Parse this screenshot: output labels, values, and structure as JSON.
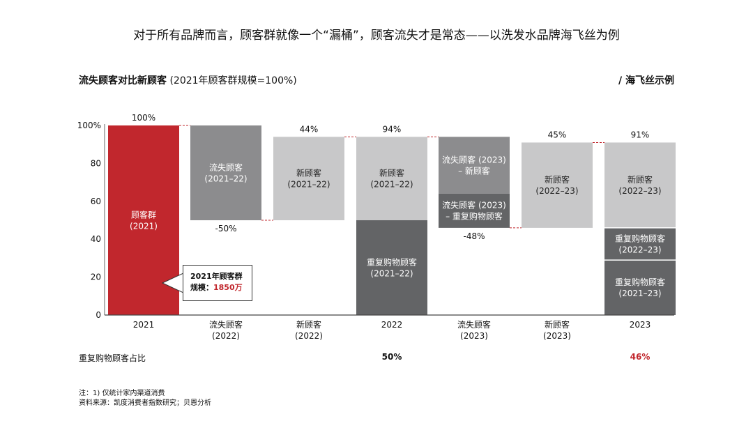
{
  "headline": "对于所有品牌而言，顾客群就像一个“漏桶”，顾客流失才是常态——以洗发水品牌海飞丝为例",
  "subtitle": {
    "bold": "流失顾客对比新顾客",
    "normal": "(2021年顾客群规模=100%)"
  },
  "example_label": "/ 海飞丝示例",
  "callout": {
    "line1": "2021年顾客群",
    "line2_prefix": "规模：",
    "line2_value": "1850万"
  },
  "ratio_row": {
    "label": "重复购物顾客占比",
    "values": [
      {
        "col": 3,
        "text": "50%",
        "color": "#111111"
      },
      {
        "col": 6,
        "text": "46%",
        "color": "#c1272d"
      }
    ]
  },
  "notes": [
    "注：1) 仅统计家内渠道消费",
    "资料来源：凯度消费者指数研究；贝恩分析"
  ],
  "colors": {
    "red": "#c1272d",
    "mid_gray": "#8c8c8e",
    "light_gray": "#c8c8c9",
    "dark_gray": "#636466"
  },
  "chart_data": {
    "type": "bar",
    "subtype": "waterfall",
    "ylim": [
      0,
      100
    ],
    "yticks": [
      0,
      20,
      40,
      60,
      80,
      100
    ],
    "yticklabels": [
      "0",
      "20",
      "40",
      "60",
      "80",
      "100%"
    ],
    "categories": [
      "2021",
      "流失顾客\n(2022)",
      "新顾客\n(2022)",
      "2022",
      "流失顾客\n(2023)",
      "新顾客\n(2023)",
      "2023"
    ],
    "top_labels": [
      "100%",
      "",
      "44%",
      "94%",
      "",
      "45%",
      "91%"
    ],
    "bottom_labels": [
      "",
      "-50%",
      "",
      "",
      "-48%",
      "",
      ""
    ],
    "segments": [
      {
        "col": 0,
        "from": 0,
        "to": 100,
        "color": "red",
        "text": "顾客群\n(2021)"
      },
      {
        "col": 1,
        "from": 50,
        "to": 100,
        "color": "mid_gray",
        "text": "流失顾客\n(2021–22)"
      },
      {
        "col": 2,
        "from": 50,
        "to": 94,
        "color": "light_gray",
        "text": "新顾客\n(2021–22)"
      },
      {
        "col": 3,
        "from": 0,
        "to": 50,
        "color": "dark_gray",
        "text": "重复购物顾客\n(2021–22)"
      },
      {
        "col": 3,
        "from": 50,
        "to": 94,
        "color": "light_gray",
        "text": "新顾客\n(2021–22)"
      },
      {
        "col": 4,
        "from": 64,
        "to": 94,
        "color": "mid_gray",
        "text": "流失顾客 (2023)\n– 新顾客"
      },
      {
        "col": 4,
        "from": 46,
        "to": 64,
        "color": "dark_gray",
        "text": "流失顾客 (2023)\n– 重复购物顾客"
      },
      {
        "col": 5,
        "from": 46,
        "to": 91,
        "color": "light_gray",
        "text": "新顾客\n(2022–23)"
      },
      {
        "col": 6,
        "from": 0,
        "to": 29,
        "color": "dark_gray",
        "text": "重复购物顾客\n(2021–23)"
      },
      {
        "col": 6,
        "from": 29,
        "to": 46,
        "color": "dark_gray",
        "text": "重复购物顾客\n(2022–23)"
      },
      {
        "col": 6,
        "from": 46,
        "to": 91,
        "color": "light_gray",
        "text": "新顾客\n(2022–23)"
      }
    ],
    "connectors": [
      {
        "from_col": 0,
        "to_col": 1,
        "value": 100
      },
      {
        "from_col": 1,
        "to_col": 2,
        "value": 50
      },
      {
        "from_col": 2,
        "to_col": 3,
        "value": 94
      },
      {
        "from_col": 3,
        "to_col": 4,
        "value": 94
      },
      {
        "from_col": 4,
        "to_col": 5,
        "value": 46
      },
      {
        "from_col": 5,
        "to_col": 6,
        "value": 91
      }
    ]
  }
}
